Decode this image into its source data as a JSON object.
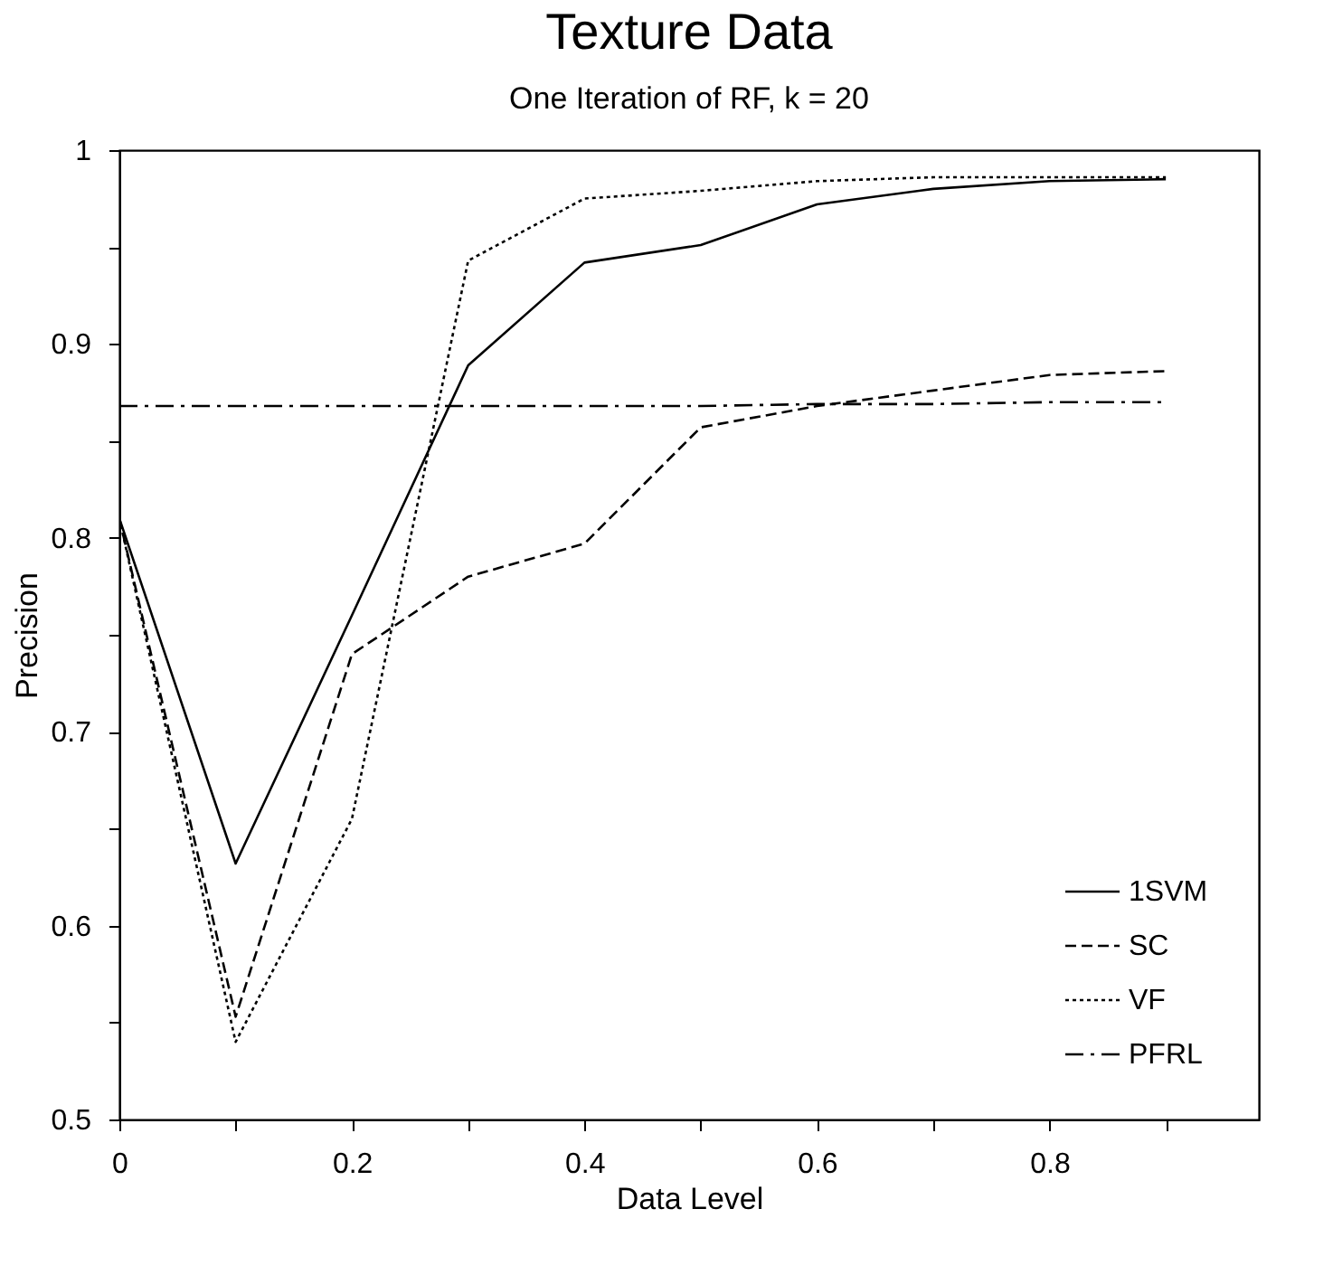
{
  "chart_data": {
    "type": "line",
    "title": "Texture Data",
    "subtitle": "One Iteration of RF, k = 20",
    "xlabel": "Data Level",
    "ylabel": "Precision",
    "x": [
      0,
      0.1,
      0.2,
      0.3,
      0.4,
      0.5,
      0.6,
      0.7,
      0.8,
      0.9
    ],
    "series": [
      {
        "name": "1SVM",
        "color": "#000000",
        "line_style": "solid",
        "values": [
          0.81,
          0.632,
          0.76,
          0.889,
          0.942,
          0.951,
          0.972,
          0.98,
          0.984,
          0.985
        ]
      },
      {
        "name": "SC",
        "color": "#000000",
        "line_style": "dashed",
        "values": [
          0.81,
          0.553,
          0.74,
          0.78,
          0.797,
          0.857,
          0.868,
          0.876,
          0.884,
          0.886
        ]
      },
      {
        "name": "VF",
        "color": "#000000",
        "line_style": "dotted",
        "values": [
          0.81,
          0.54,
          0.655,
          0.943,
          0.975,
          0.979,
          0.984,
          0.986,
          0.986,
          0.986
        ]
      },
      {
        "name": "PFRL",
        "color": "#000000",
        "line_style": "dashdot",
        "values": [
          0.868,
          0.868,
          0.868,
          0.868,
          0.868,
          0.868,
          0.869,
          0.869,
          0.87,
          0.87
        ]
      }
    ],
    "xlim": [
      0,
      0.98
    ],
    "xticks": [
      0,
      {
        "value": 0.1,
        "label": null
      },
      0.2,
      {
        "value": 0.3,
        "label": null
      },
      0.4,
      {
        "value": 0.5,
        "label": null
      },
      0.6,
      {
        "value": 0.7,
        "label": null
      },
      0.8,
      {
        "value": 0.9,
        "label": null
      }
    ],
    "ylim": [
      0.5,
      1
    ],
    "yticks": [
      0.5,
      {
        "value": 0.55,
        "label": null
      },
      0.6,
      {
        "value": 0.65,
        "label": null
      },
      0.7,
      {
        "value": 0.75,
        "label": null
      },
      0.8,
      {
        "value": 0.85,
        "label": null
      },
      0.9,
      {
        "value": 0.95,
        "label": null
      },
      1
    ],
    "grid": false,
    "legend": "bottom right",
    "marker": "none"
  }
}
